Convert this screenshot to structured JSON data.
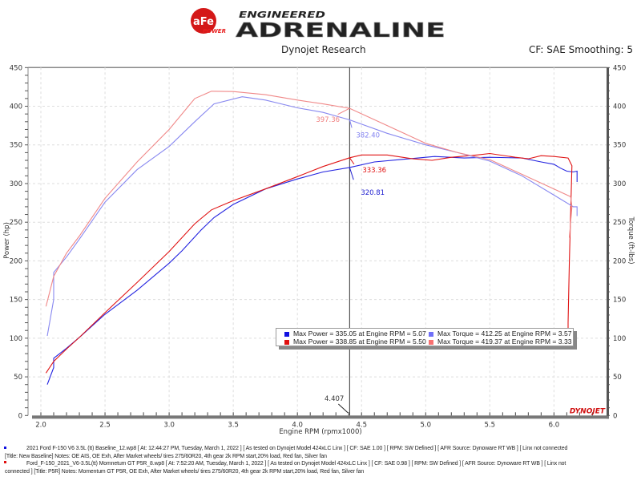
{
  "header": {
    "logo_text": [
      "aFe",
      "POWER",
      "ENGINEERED",
      "ADRENALINE"
    ],
    "title": "Dynojet Research",
    "settings": "CF: SAE Smoothing: 5",
    "watermark": "DYNOJET"
  },
  "chart_data": {
    "type": "line",
    "xlabel": "Engine RPM (rpmx1000)",
    "ylabel_left": "Power (hp)",
    "ylabel_right": "Torque (ft-lbs)",
    "xlim": [
      1.9,
      6.41
    ],
    "ylim": [
      0,
      450
    ],
    "xticks": [
      "2.0",
      "2.5",
      "3.0",
      "3.5",
      "4.0",
      "4.5",
      "5.0",
      "5.5",
      "6.0"
    ],
    "yticks": [
      "0",
      "50",
      "100",
      "150",
      "200",
      "250",
      "300",
      "350",
      "400",
      "450"
    ],
    "grid": true,
    "cursor": {
      "x": 4.407,
      "label": "4.407"
    },
    "series": [
      {
        "id": "power-baseline",
        "color": "#2424e0",
        "x": [
          2.05,
          2.1,
          2.1,
          2.2,
          2.3,
          2.5,
          2.75,
          3.0,
          3.1,
          3.25,
          3.35,
          3.5,
          3.75,
          4.0,
          4.2,
          4.407,
          4.6,
          4.8,
          5.07,
          5.3,
          5.5,
          5.75,
          5.9,
          6.0,
          6.05,
          6.1,
          6.15,
          6.18,
          6.18
        ],
        "y": [
          40,
          62,
          74,
          87,
          101,
          131,
          162,
          197,
          213,
          240,
          256,
          273,
          293,
          306,
          315,
          320.81,
          328,
          331,
          335,
          333,
          334,
          333,
          328,
          325,
          320,
          316,
          315,
          316,
          302
        ]
      },
      {
        "id": "power-p5r",
        "color": "#e01414",
        "x": [
          2.04,
          2.1,
          2.2,
          2.3,
          2.5,
          2.75,
          3.0,
          3.2,
          3.33,
          3.5,
          3.75,
          4.0,
          4.2,
          4.407,
          4.5,
          4.7,
          4.9,
          5.05,
          5.2,
          5.4,
          5.5,
          5.7,
          5.8,
          5.9,
          6.0,
          6.11,
          6.14,
          6.12,
          6.11,
          6.11
        ],
        "y": [
          55,
          70,
          86,
          101,
          133,
          172,
          212,
          248,
          266,
          278,
          293,
          309,
          322,
          333.36,
          337,
          337,
          332,
          330,
          334,
          337,
          338.85,
          334,
          332,
          336,
          335,
          333,
          323,
          200,
          120,
          110
        ]
      },
      {
        "id": "torque-baseline",
        "color": "#8888f0",
        "x": [
          2.05,
          2.1,
          2.1,
          2.2,
          2.3,
          2.5,
          2.75,
          3.0,
          3.2,
          3.35,
          3.57,
          3.75,
          4.0,
          4.2,
          4.407,
          4.7,
          5.0,
          5.25,
          5.5,
          5.75,
          6.0,
          6.15,
          6.18,
          6.18
        ],
        "y": [
          103,
          150,
          185,
          205,
          228,
          276,
          318,
          348,
          380,
          403,
          412.25,
          408,
          398,
          392,
          382.4,
          365,
          350,
          340,
          329,
          310,
          285,
          270,
          270,
          258
        ]
      },
      {
        "id": "torque-p5r",
        "color": "#f08888",
        "x": [
          2.04,
          2.1,
          2.2,
          2.3,
          2.5,
          2.75,
          3.0,
          3.2,
          3.33,
          3.5,
          3.75,
          4.0,
          4.2,
          4.407,
          4.7,
          5.0,
          5.25,
          5.5,
          5.75,
          6.0,
          6.13,
          6.14,
          6.12
        ],
        "y": [
          141,
          180,
          210,
          232,
          281,
          328,
          370,
          410,
          419.37,
          419,
          415,
          408,
          403,
          397.36,
          375,
          352,
          340,
          331,
          312,
          293,
          283,
          270,
          230
        ]
      }
    ],
    "cursor_values": [
      {
        "series": "torque-p5r",
        "label": "397.36",
        "color": "#f08080"
      },
      {
        "series": "torque-baseline",
        "label": "382.40",
        "color": "#8080f0"
      },
      {
        "series": "power-p5r",
        "label": "333.36",
        "color": "#e01010"
      },
      {
        "series": "power-baseline",
        "label": "320.81",
        "color": "#2020d0"
      }
    ],
    "legend": [
      {
        "color": "#1010e0",
        "text": "Max Power = 335.05 at Engine RPM = 5.07"
      },
      {
        "color": "#7070f8",
        "text": "Max Torque = 412.25 at Engine RPM = 3.57"
      },
      {
        "color": "#e01010",
        "text": "Max Power = 338.85 at Engine RPM = 5.50"
      },
      {
        "color": "#f87070",
        "text": "Max Torque = 419.37 at Engine RPM = 3.33"
      }
    ]
  },
  "footer": {
    "runs": [
      {
        "color": "#1010e0",
        "line1": "2021 Ford F-150 V6 3.5L (tt) Baseline_12.wp8 [ At: 12:44:27 PM, Tuesday, March 1, 2022 ] [ As tested on Dynojet Model 424xLC Linx ] [ CF: SAE 1.00 ] [ RPM: SW Defined ] [ AFR Source: Dynoware RT WB ] [ Linx not connected",
        "line2": "[Title: New Baseline]  Notes: OE AIS, OE Exh, After Market wheels/ tires 275/60R20, 4th gear 2k RPM start,20% load, Red fan, Silver fan"
      },
      {
        "color": "#e01010",
        "line1": "Ford_F-150_2021_V6-3.5L(tt) Momnetum GT P5R_8.wp8 [ At: 7:52:20 AM, Tuesday, March 1, 2022 ] [ As tested on Dynojet Model 424xLC Linx ] [ CF: SAE 0.98 ] [ RPM: SW Defined ] [ AFR Source: Dynoware RT WB ] [ Linx not",
        "line2": "connected ] [Title: P5R]  Notes: Momentum GT  P5R, OE Exh, After Market wheels/ tires 275/60R20, 4th gear 2k RPM start,20% load, Red fan, Silver fan"
      }
    ]
  }
}
